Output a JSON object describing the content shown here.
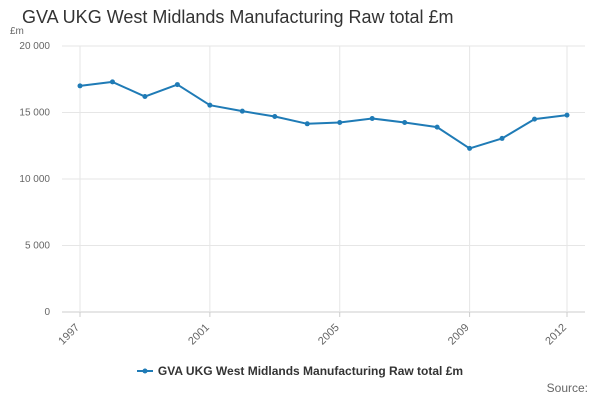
{
  "title": "GVA UKG West Midlands Manufacturing Raw total £m",
  "source_label": "Source:",
  "colors": {
    "series": "#1f7bb6",
    "grid": "#e6e6e6",
    "axis": "#cccccc"
  },
  "chart_data": {
    "type": "line",
    "title": "GVA UKG West Midlands Manufacturing Raw total £m",
    "ylabel": "£m",
    "xlabel": "",
    "ylim": [
      0,
      20000
    ],
    "y_ticks": [
      0,
      5000,
      10000,
      15000,
      20000
    ],
    "y_tick_labels": [
      "0",
      "5 000",
      "10 000",
      "15 000",
      "20 000"
    ],
    "x_tick_labels": [
      "1997",
      "2001",
      "2005",
      "2009",
      "2012"
    ],
    "grid": true,
    "legend": "bottom",
    "x": [
      1997,
      1998,
      1999,
      2000,
      2001,
      2002,
      2003,
      2004,
      2005,
      2006,
      2007,
      2008,
      2009,
      2010,
      2011,
      2012
    ],
    "series": [
      {
        "name": "GVA UKG West Midlands Manufacturing Raw total £m",
        "values": [
          17000,
          17300,
          16200,
          17100,
          15550,
          15100,
          14700,
          14150,
          14250,
          14550,
          14250,
          13900,
          12300,
          13050,
          14500,
          14800
        ]
      }
    ]
  }
}
